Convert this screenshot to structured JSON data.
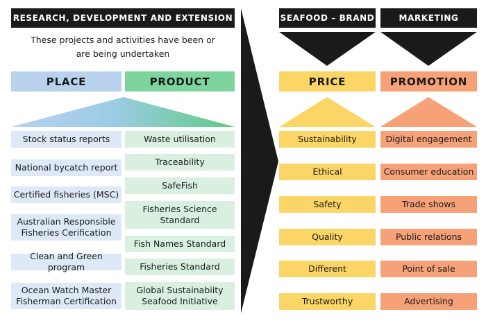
{
  "left_banner": "RESEARCH, DEVELOPMENT AND EXTENSION",
  "intro_text": "These projects and activities have been or\nare being undertaken",
  "right_banners": [
    "SEAFOOD – BRAND",
    "MARKETING"
  ],
  "headers": [
    "PLACE",
    "PRODUCT",
    "PRICE",
    "PROMOTION"
  ],
  "colors": {
    "place": "#b8d2ee",
    "product": "#7ed49d",
    "price": "#fbd565",
    "promotion": "#f6a177",
    "dark": "#1a1a1a"
  },
  "place_items": [
    "Stock status reports",
    "National bycatch report",
    "Certified fisheries (MSC)",
    "Australian Responsible\nFisheries Cerification",
    "Clean and Green program",
    "Ocean Watch Master\nFisherman Certification"
  ],
  "product_items": [
    "Waste utilisation",
    "Traceability",
    "SafeFish",
    "Fisheries Science\nStandard",
    "Fish Names Standard",
    "Fisheries Standard",
    "Global Sustainabiity\nSeafood Initiative"
  ],
  "price_items": [
    "Sustainability",
    "Ethical",
    "Safety",
    "Quality",
    "Different",
    "Trustworthy"
  ],
  "promotion_items": [
    "Digital engagement",
    "Consumer education",
    "Trade shows",
    "Public relations",
    "Point of sale",
    "Advertising"
  ]
}
